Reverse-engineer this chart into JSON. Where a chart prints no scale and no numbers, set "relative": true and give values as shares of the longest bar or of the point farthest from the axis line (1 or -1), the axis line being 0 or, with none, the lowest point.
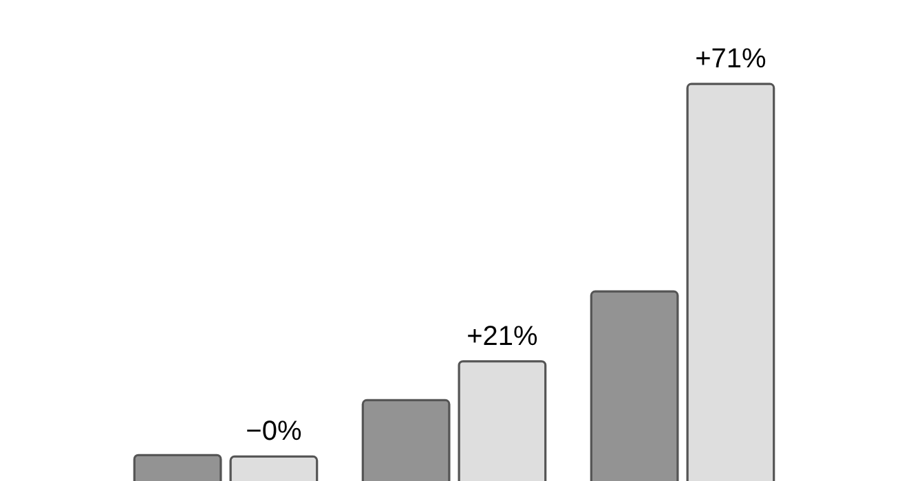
{
  "chart_data": {
    "type": "bar",
    "relative": true,
    "categories": [
      null,
      null,
      null
    ],
    "legend": false,
    "series": [
      {
        "color": "#939393",
        "values": [
          0.256,
          0.366,
          0.584
        ]
      },
      {
        "color": "#dedede",
        "values": [
          0.253,
          0.444,
          1.0
        ]
      }
    ],
    "annotations": [
      {
        "text": "−0%",
        "y": 0.253
      },
      {
        "text": "+21%",
        "y": 0.444
      },
      {
        "text": "+71%",
        "y": 1.0
      }
    ]
  }
}
